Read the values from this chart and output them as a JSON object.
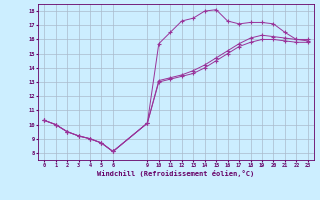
{
  "xlabel": "Windchill (Refroidissement éolien,°C)",
  "background_color": "#cceeff",
  "line_color": "#993399",
  "grid_color": "#aabbcc",
  "xlim": [
    -0.5,
    23.5
  ],
  "ylim": [
    7.5,
    18.5
  ],
  "xticks": [
    0,
    1,
    2,
    3,
    4,
    5,
    6,
    9,
    10,
    11,
    12,
    13,
    14,
    15,
    16,
    17,
    18,
    19,
    20,
    21,
    22,
    23
  ],
  "yticks": [
    8,
    9,
    10,
    11,
    12,
    13,
    14,
    15,
    16,
    17,
    18
  ],
  "hours": [
    0,
    1,
    2,
    3,
    4,
    5,
    6,
    9,
    10,
    11,
    12,
    13,
    14,
    15,
    16,
    17,
    18,
    19,
    20,
    21,
    22,
    23
  ],
  "temp_y": [
    10.3,
    10.0,
    9.5,
    9.2,
    9.0,
    8.7,
    8.1,
    10.1,
    15.7,
    16.5,
    17.3,
    17.5,
    18.0,
    18.1,
    17.3,
    17.1,
    17.2,
    17.2,
    17.1,
    16.5,
    16.0,
    15.9
  ],
  "wc_low_y": [
    10.3,
    10.0,
    9.5,
    9.2,
    9.0,
    8.7,
    8.1,
    10.1,
    13.0,
    13.2,
    13.4,
    13.6,
    14.0,
    14.5,
    15.0,
    15.5,
    15.8,
    16.0,
    16.0,
    15.9,
    15.8,
    15.8
  ],
  "wc_mid_y": [
    10.3,
    10.0,
    9.5,
    9.2,
    9.0,
    8.7,
    8.1,
    10.1,
    13.1,
    13.3,
    13.5,
    13.8,
    14.2,
    14.7,
    15.2,
    15.7,
    16.1,
    16.3,
    16.2,
    16.1,
    16.0,
    16.0
  ]
}
